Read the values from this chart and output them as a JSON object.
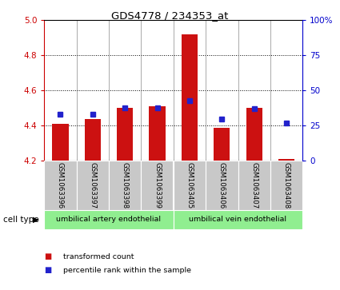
{
  "title": "GDS4778 / 234353_at",
  "samples": [
    "GSM1063396",
    "GSM1063397",
    "GSM1063398",
    "GSM1063399",
    "GSM1063405",
    "GSM1063406",
    "GSM1063407",
    "GSM1063408"
  ],
  "transformed_count": [
    4.41,
    4.44,
    4.5,
    4.51,
    4.92,
    4.39,
    4.5,
    4.21
  ],
  "percentile_rank": [
    33,
    33,
    38,
    38,
    43,
    30,
    37,
    27
  ],
  "ylim_left": [
    4.2,
    5.0
  ],
  "yticks_left": [
    4.2,
    4.4,
    4.6,
    4.8,
    5.0
  ],
  "ylim_right": [
    0,
    100
  ],
  "yticks_right": [
    0,
    25,
    50,
    75,
    100
  ],
  "bar_color": "#CC1111",
  "dot_color": "#2222CC",
  "bar_bottom": 4.2,
  "cell_types": [
    {
      "label": "umbilical artery endothelial",
      "color": "#90EE90",
      "start": 0,
      "end": 4
    },
    {
      "label": "umbilical vein endothelial",
      "color": "#90EE90",
      "start": 4,
      "end": 8
    }
  ],
  "cell_type_label": "cell type",
  "legend_items": [
    {
      "label": "transformed count",
      "color": "#CC1111"
    },
    {
      "label": "percentile rank within the sample",
      "color": "#2222CC"
    }
  ],
  "background_color": "#ffffff",
  "tick_color_left": "#CC0000",
  "tick_color_right": "#0000CC",
  "xticklabel_bg": "#C8C8C8"
}
